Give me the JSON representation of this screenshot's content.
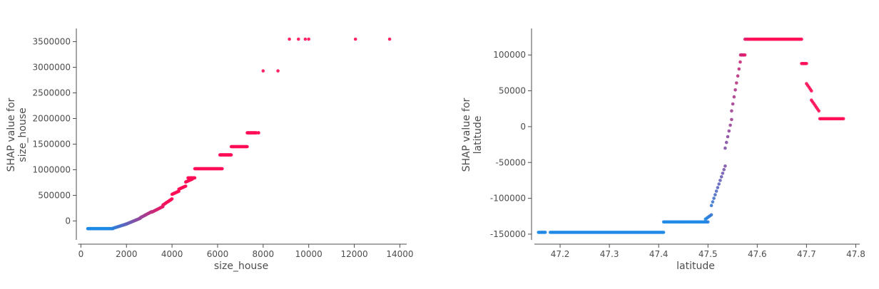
{
  "chart_data": [
    {
      "type": "scatter",
      "xlabel": "size_house",
      "ylabel_lines": [
        "SHAP value for",
        "size_house"
      ],
      "xlim": [
        -200,
        14300
      ],
      "ylim": [
        -370000,
        3730000
      ],
      "xticks": [
        0,
        2000,
        4000,
        6000,
        8000,
        10000,
        12000,
        14000
      ],
      "yticks": [
        0,
        500000,
        1000000,
        1500000,
        2000000,
        2500000,
        3000000,
        3500000
      ],
      "grid": false,
      "color_low": "#1e88e5",
      "color_high": "#ff0d57",
      "segments": [
        {
          "x0": 300,
          "x1": 1400,
          "y0": -150000,
          "y1": -150000,
          "step": 25
        },
        {
          "x0": 1400,
          "x1": 2000,
          "y0": -145000,
          "y1": -60000,
          "step": 25
        },
        {
          "x0": 2000,
          "x1": 2600,
          "y0": -60000,
          "y1": 50000,
          "step": 25
        },
        {
          "x0": 2600,
          "x1": 3100,
          "y0": 60000,
          "y1": 180000,
          "step": 25
        },
        {
          "x0": 3100,
          "x1": 3600,
          "y0": 170000,
          "y1": 280000,
          "step": 25
        },
        {
          "x0": 3600,
          "x1": 4000,
          "y0": 310000,
          "y1": 430000,
          "step": 25
        },
        {
          "x0": 4000,
          "x1": 4300,
          "y0": 520000,
          "y1": 580000,
          "step": 25
        },
        {
          "x0": 4300,
          "x1": 4600,
          "y0": 620000,
          "y1": 680000,
          "step": 25
        },
        {
          "x0": 4600,
          "x1": 4900,
          "y0": 760000,
          "y1": 820000,
          "step": 25
        },
        {
          "x0": 4700,
          "x1": 5000,
          "y0": 840000,
          "y1": 840000,
          "step": 25
        },
        {
          "x0": 5000,
          "x1": 6200,
          "y0": 1020000,
          "y1": 1020000,
          "step": 25
        },
        {
          "x0": 6100,
          "x1": 6600,
          "y0": 1290000,
          "y1": 1290000,
          "step": 25
        },
        {
          "x0": 6600,
          "x1": 7300,
          "y0": 1450000,
          "y1": 1450000,
          "step": 25
        },
        {
          "x0": 7300,
          "x1": 7700,
          "y0": 1720000,
          "y1": 1720000,
          "step": 25
        },
        {
          "x0": 7800,
          "x1": 7800,
          "y0": 1720000,
          "y1": 1720000,
          "step": 25
        }
      ],
      "points": [
        {
          "x": 8000,
          "y": 2930000
        },
        {
          "x": 8650,
          "y": 2930000
        },
        {
          "x": 9150,
          "y": 3550000
        },
        {
          "x": 9550,
          "y": 3550000
        },
        {
          "x": 9850,
          "y": 3550000
        },
        {
          "x": 10000,
          "y": 3550000
        },
        {
          "x": 12050,
          "y": 3550000
        },
        {
          "x": 13550,
          "y": 3550000
        }
      ]
    },
    {
      "type": "scatter",
      "xlabel": "latitude",
      "ylabel_lines": [
        "SHAP value for",
        "latitude"
      ],
      "xlim": [
        47.142,
        47.808
      ],
      "ylim": [
        -158000,
        135000
      ],
      "xticks": [
        47.2,
        47.3,
        47.4,
        47.5,
        47.6,
        47.7,
        47.8
      ],
      "yticks": [
        -150000,
        -100000,
        -50000,
        0,
        50000,
        100000
      ],
      "grid": false,
      "color_low": "#1e88e5",
      "color_high": "#ff0d57",
      "segments": [
        {
          "x0": 47.156,
          "x1": 47.17,
          "y0": -147500,
          "y1": -147500,
          "step": 0.0025
        },
        {
          "x0": 47.18,
          "x1": 47.41,
          "y0": -147500,
          "y1": -147500,
          "step": 0.0025
        },
        {
          "x0": 47.41,
          "x1": 47.5,
          "y0": -133000,
          "y1": -133000,
          "step": 0.0025
        },
        {
          "x0": 47.495,
          "x1": 47.507,
          "y0": -129000,
          "y1": -123000,
          "step": 0.0025
        },
        {
          "x0": 47.507,
          "x1": 47.535,
          "y0": -110000,
          "y1": -55000,
          "step": 0.0025
        },
        {
          "x0": 47.535,
          "x1": 47.548,
          "y0": -30000,
          "y1": 10000,
          "step": 0.0025
        },
        {
          "x0": 47.548,
          "x1": 47.568,
          "y0": 22000,
          "y1": 100000,
          "step": 0.0025
        },
        {
          "x0": 47.566,
          "x1": 47.575,
          "y0": 100000,
          "y1": 100000,
          "step": 0.0025
        },
        {
          "x0": 47.575,
          "x1": 47.69,
          "y0": 122000,
          "y1": 122000,
          "step": 0.0025
        },
        {
          "x0": 47.69,
          "x1": 47.7,
          "y0": 88000,
          "y1": 88000,
          "step": 0.0025
        },
        {
          "x0": 47.7,
          "x1": 47.71,
          "y0": 60000,
          "y1": 50000,
          "step": 0.0025
        },
        {
          "x0": 47.71,
          "x1": 47.725,
          "y0": 37000,
          "y1": 22000,
          "step": 0.0025
        },
        {
          "x0": 47.727,
          "x1": 47.775,
          "y0": 11000,
          "y1": 11000,
          "step": 0.0025
        }
      ]
    }
  ]
}
